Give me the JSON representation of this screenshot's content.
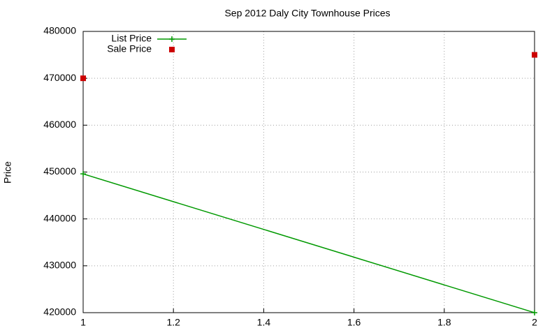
{
  "chart_data": {
    "type": "line",
    "title": "Sep 2012 Daly City Townhouse Prices",
    "y_label": "Price",
    "x": [
      1,
      2
    ],
    "series": [
      {
        "name": "List Price",
        "color": "#009900",
        "mode": "lines+points",
        "values": [
          449600,
          420000
        ]
      },
      {
        "name": "Sale Price",
        "color": "#cc0000",
        "mode": "points",
        "values": [
          470000,
          475000
        ]
      }
    ],
    "xlim": [
      1,
      2
    ],
    "xticks": [
      1,
      1.2,
      1.4,
      1.6,
      1.8,
      2
    ],
    "ylim": [
      420000,
      480000
    ],
    "yticks": [
      420000,
      430000,
      440000,
      450000,
      460000,
      470000,
      480000
    ],
    "grid": true,
    "legend": "top-left"
  }
}
